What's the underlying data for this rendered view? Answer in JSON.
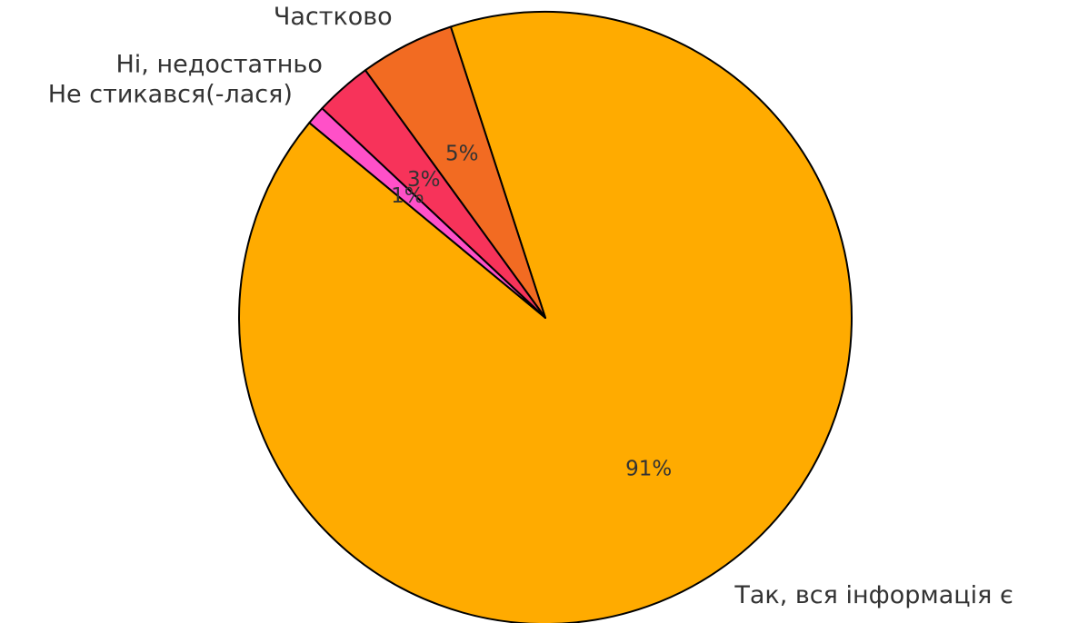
{
  "chart_data": {
    "type": "pie",
    "categories": [
      "Так, вся інформація є",
      "Частково",
      "Ні, недостатньо",
      "Не стикався(-лася)"
    ],
    "values": [
      91,
      5,
      3,
      1
    ],
    "value_labels": [
      "91%",
      "5%",
      "3%",
      "1%"
    ],
    "colors": [
      "#ffab00",
      "#f26b22",
      "#f7335a",
      "#ff50c8"
    ],
    "startangle": 140.4
  }
}
